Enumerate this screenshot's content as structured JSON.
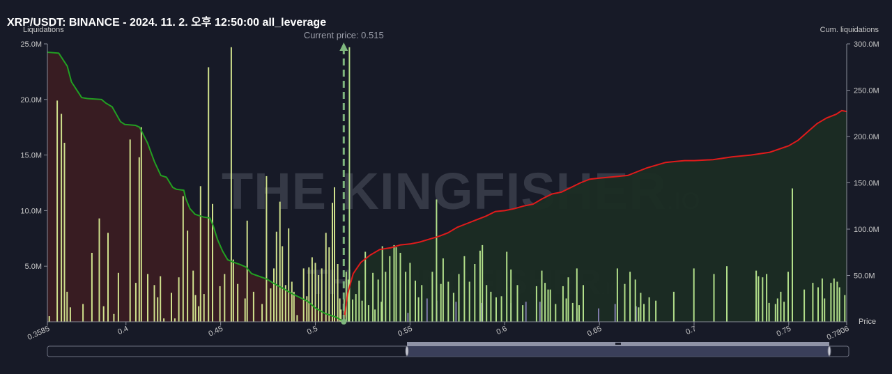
{
  "title": "XRP/USDT: BINANCE - 2024. 11. 2. 오후 12:50:00 all_leverage",
  "watermark": {
    "main": "THE KINGFISHER",
    "suffix": ".IO"
  },
  "colors": {
    "background": "#171a27",
    "bar_long": "#cfe08c",
    "bar_short": "#b2df8a",
    "bar_faint": "#7d7aa8",
    "cum_short_line": "#22a022",
    "cum_short_fill": "#3a1c22",
    "cum_long_line": "#e01b1b",
    "cum_long_fill": "#1b2c23",
    "current_price_line": "#7fb77e",
    "axis_text": "#c8c8c8"
  },
  "chart_data": {
    "type": "bar",
    "title": "XRP/USDT: BINANCE - 2024. 11. 2. 오후 12:50:00 all_leverage",
    "xlabel": "Price",
    "ylabel_left": "Liquidations",
    "ylabel_right": "Cum. liquidations",
    "current_price": 0.515,
    "current_price_label": "Current price: 0.515",
    "xlim": [
      0.3585,
      0.7806
    ],
    "ylim_left": [
      0,
      25000000
    ],
    "ylim_right": [
      0,
      300000000
    ],
    "x_ticks": [
      0.3585,
      0.4,
      0.45,
      0.5,
      0.55,
      0.6,
      0.65,
      0.7,
      0.75,
      0.7806
    ],
    "x_tick_labels": [
      "0.3585",
      "0.4",
      "0.45",
      "0.5",
      "0.55",
      "0.6",
      "0.65",
      "0.7",
      "0.75",
      "0.7806"
    ],
    "y_ticks_left": [
      5000000,
      10000000,
      15000000,
      20000000,
      25000000
    ],
    "y_tick_labels_left": [
      "5.0M",
      "10.0M",
      "15.0M",
      "20.0M",
      "25.0M"
    ],
    "y_ticks_right": [
      50000000,
      100000000,
      150000000,
      200000000,
      250000000,
      300000000
    ],
    "y_tick_labels_right": [
      "50.0M",
      "100.0M",
      "150.0M",
      "200.0M",
      "250.0M",
      "300.0M"
    ],
    "grid": false,
    "bars": {
      "price": [
        0.3595,
        0.3637,
        0.3659,
        0.3675,
        0.3689,
        0.3706,
        0.3773,
        0.382,
        0.3859,
        0.3882,
        0.3905,
        0.3936,
        0.396,
        0.4022,
        0.4052,
        0.407,
        0.4081,
        0.4115,
        0.415,
        0.4167,
        0.4182,
        0.42,
        0.424,
        0.4258,
        0.4279,
        0.4302,
        0.4325,
        0.4355,
        0.4367,
        0.4384,
        0.4394,
        0.4412,
        0.4436,
        0.4457,
        0.4496,
        0.4521,
        0.4556,
        0.4567,
        0.459,
        0.4629,
        0.464,
        0.4674,
        0.4719,
        0.4742,
        0.4764,
        0.4781,
        0.4795,
        0.4813,
        0.4826,
        0.4843,
        0.4859,
        0.4876,
        0.4887,
        0.4904,
        0.4938,
        0.4955,
        0.4966,
        0.4983,
        0.5,
        0.5017,
        0.5034,
        0.5056,
        0.5073,
        0.509,
        0.5101,
        0.5118,
        0.5129,
        0.5135,
        0.5152,
        0.5163,
        0.5174,
        0.518,
        0.5197,
        0.5214,
        0.5231,
        0.5247,
        0.5264,
        0.5281,
        0.5304,
        0.5315,
        0.5332,
        0.5349,
        0.5354,
        0.5371,
        0.5393,
        0.5416,
        0.5427,
        0.5449,
        0.5477,
        0.55,
        0.5528,
        0.5545,
        0.5562,
        0.5618,
        0.564,
        0.5663,
        0.5675,
        0.5702,
        0.573,
        0.5758,
        0.5787,
        0.5814,
        0.5842,
        0.587,
        0.5882,
        0.5904,
        0.5927,
        0.5955,
        0.5983,
        0.6011,
        0.6033,
        0.6067,
        0.6095,
        0.6168,
        0.6196,
        0.6213,
        0.6229,
        0.6241,
        0.6269,
        0.6308,
        0.6325,
        0.6336,
        0.6359,
        0.6381,
        0.6393,
        0.6415,
        0.6595,
        0.6634,
        0.6662,
        0.669,
        0.6707,
        0.6718,
        0.6735,
        0.6763,
        0.6798,
        0.6893,
        0.6999,
        0.7105,
        0.7173,
        0.7328,
        0.734,
        0.7362,
        0.7383,
        0.7396,
        0.743,
        0.7441,
        0.7458,
        0.7475,
        0.7497,
        0.7519,
        0.7582,
        0.7627,
        0.7655,
        0.7677,
        0.7689,
        0.7723,
        0.7739,
        0.7756,
        0.7768,
        0.7796
      ],
      "value": [
        500000,
        19900000,
        18700000,
        16100000,
        2700000,
        1300000,
        1600000,
        6200000,
        9300000,
        1400000,
        8000000,
        700000,
        4400000,
        16400000,
        3500000,
        14800000,
        17500000,
        4300000,
        3300000,
        2200000,
        4100000,
        300000,
        2600000,
        300000,
        4000000,
        11300000,
        8200000,
        4600000,
        2400000,
        1400000,
        12200000,
        2500000,
        22900000,
        10600000,
        3200000,
        4300000,
        24700000,
        5600000,
        3400000,
        2100000,
        9100000,
        2700000,
        1600000,
        13100000,
        3000000,
        4800000,
        8100000,
        10800000,
        6800000,
        3300000,
        8400000,
        3600000,
        2700000,
        600000,
        4800000,
        2300000,
        4900000,
        5800000,
        5300000,
        4200000,
        4800000,
        8000000,
        6700000,
        10700000,
        12100000,
        5200000,
        2100000,
        1100000,
        2100000,
        4500000,
        3800000,
        24700000,
        2000000,
        2500000,
        3700000,
        1900000,
        6300000,
        1500000,
        4400000,
        1100000,
        3800000,
        1800000,
        6800000,
        4500000,
        5900000,
        6900000,
        6700000,
        6200000,
        4500000,
        5300000,
        3700000,
        2200000,
        3300000,
        4500000,
        11000000,
        3400000,
        5700000,
        3600000,
        2600000,
        4300000,
        5900000,
        3600000,
        5200000,
        6400000,
        6900000,
        3300000,
        2700000,
        2200000,
        2300000,
        6300000,
        4700000,
        3300000,
        1500000,
        3200000,
        4600000,
        3500000,
        2900000,
        2900000,
        1600000,
        3200000,
        2100000,
        4000000,
        1700000,
        4800000,
        1500000,
        3300000,
        4800000,
        3400000,
        4500000,
        3800000,
        1300000,
        2600000,
        1600000,
        2200000,
        1900000,
        2700000,
        4800000,
        4300000,
        5000000,
        4600000,
        4100000,
        4000000,
        4300000,
        1700000,
        1600000,
        2100000,
        2700000,
        1800000,
        4500000,
        12000000,
        2900000,
        3500000,
        3100000,
        3900000,
        2100000,
        3500000,
        3900000,
        3600000,
        3100000,
        2400000
      ],
      "faint_price": [
        0.5489,
        0.559,
        0.5641,
        0.5743,
        0.5878,
        0.6033,
        0.6112,
        0.6186,
        0.6382,
        0.6496,
        0.6583,
        0.6694
      ],
      "faint_value": [
        800000,
        2100000,
        1900000,
        1800000,
        1700000,
        1700000,
        1800000,
        1800000,
        1200000,
        1200000,
        1600000,
        1400000
      ]
    },
    "series": [
      {
        "name": "",
        "side": "short-below",
        "x": [
          0.3585,
          0.3645,
          0.369,
          0.3712,
          0.3766,
          0.3797,
          0.3871,
          0.3894,
          0.3927,
          0.3971,
          0.3994,
          0.405,
          0.4072,
          0.4114,
          0.415,
          0.4184,
          0.4214,
          0.4247,
          0.4266,
          0.4305,
          0.4316,
          0.4338,
          0.4365,
          0.441,
          0.4443,
          0.446,
          0.4483,
          0.4511,
          0.4537,
          0.4572,
          0.46,
          0.4634,
          0.4663,
          0.469,
          0.4745,
          0.4775,
          0.483,
          0.488,
          0.492,
          0.496,
          0.5,
          0.505,
          0.511,
          0.515
        ],
        "y": [
          291000000,
          290000000,
          276000000,
          259000000,
          242000000,
          241000000,
          240000000,
          236000000,
          232000000,
          216000000,
          213000000,
          212000000,
          210000000,
          193000000,
          173000000,
          158000000,
          156000000,
          145000000,
          143000000,
          142000000,
          133000000,
          122000000,
          116000000,
          113000000,
          112000000,
          104000000,
          89000000,
          76000000,
          67000000,
          64000000,
          62000000,
          59000000,
          52000000,
          50000000,
          46000000,
          42000000,
          36000000,
          30000000,
          26000000,
          22000000,
          15000000,
          9000000,
          5000000,
          0
        ]
      },
      {
        "name": "",
        "side": "long-above",
        "x": [
          0.515,
          0.517,
          0.52,
          0.524,
          0.529,
          0.534,
          0.54,
          0.545,
          0.55,
          0.555,
          0.56,
          0.565,
          0.57,
          0.575,
          0.58,
          0.585,
          0.59,
          0.595,
          0.6,
          0.605,
          0.61,
          0.615,
          0.62,
          0.625,
          0.63,
          0.635,
          0.64,
          0.645,
          0.65,
          0.655,
          0.66,
          0.665,
          0.67,
          0.675,
          0.68,
          0.685,
          0.69,
          0.695,
          0.7,
          0.71,
          0.72,
          0.73,
          0.74,
          0.75,
          0.755,
          0.76,
          0.765,
          0.77,
          0.775,
          0.778,
          0.7806
        ],
        "y": [
          0,
          30000000,
          52000000,
          64000000,
          72000000,
          78000000,
          80000000,
          83000000,
          84000000,
          86000000,
          89000000,
          92000000,
          96000000,
          102000000,
          106000000,
          110000000,
          114000000,
          119000000,
          120000000,
          122000000,
          125000000,
          127000000,
          133000000,
          138000000,
          140000000,
          145000000,
          150000000,
          154000000,
          155000000,
          156000000,
          157000000,
          158000000,
          162000000,
          166000000,
          169000000,
          172000000,
          173000000,
          174000000,
          174000000,
          175000000,
          178000000,
          180000000,
          183000000,
          190000000,
          196000000,
          205000000,
          214000000,
          220000000,
          224000000,
          228000000,
          227000000
        ]
      }
    ]
  }
}
